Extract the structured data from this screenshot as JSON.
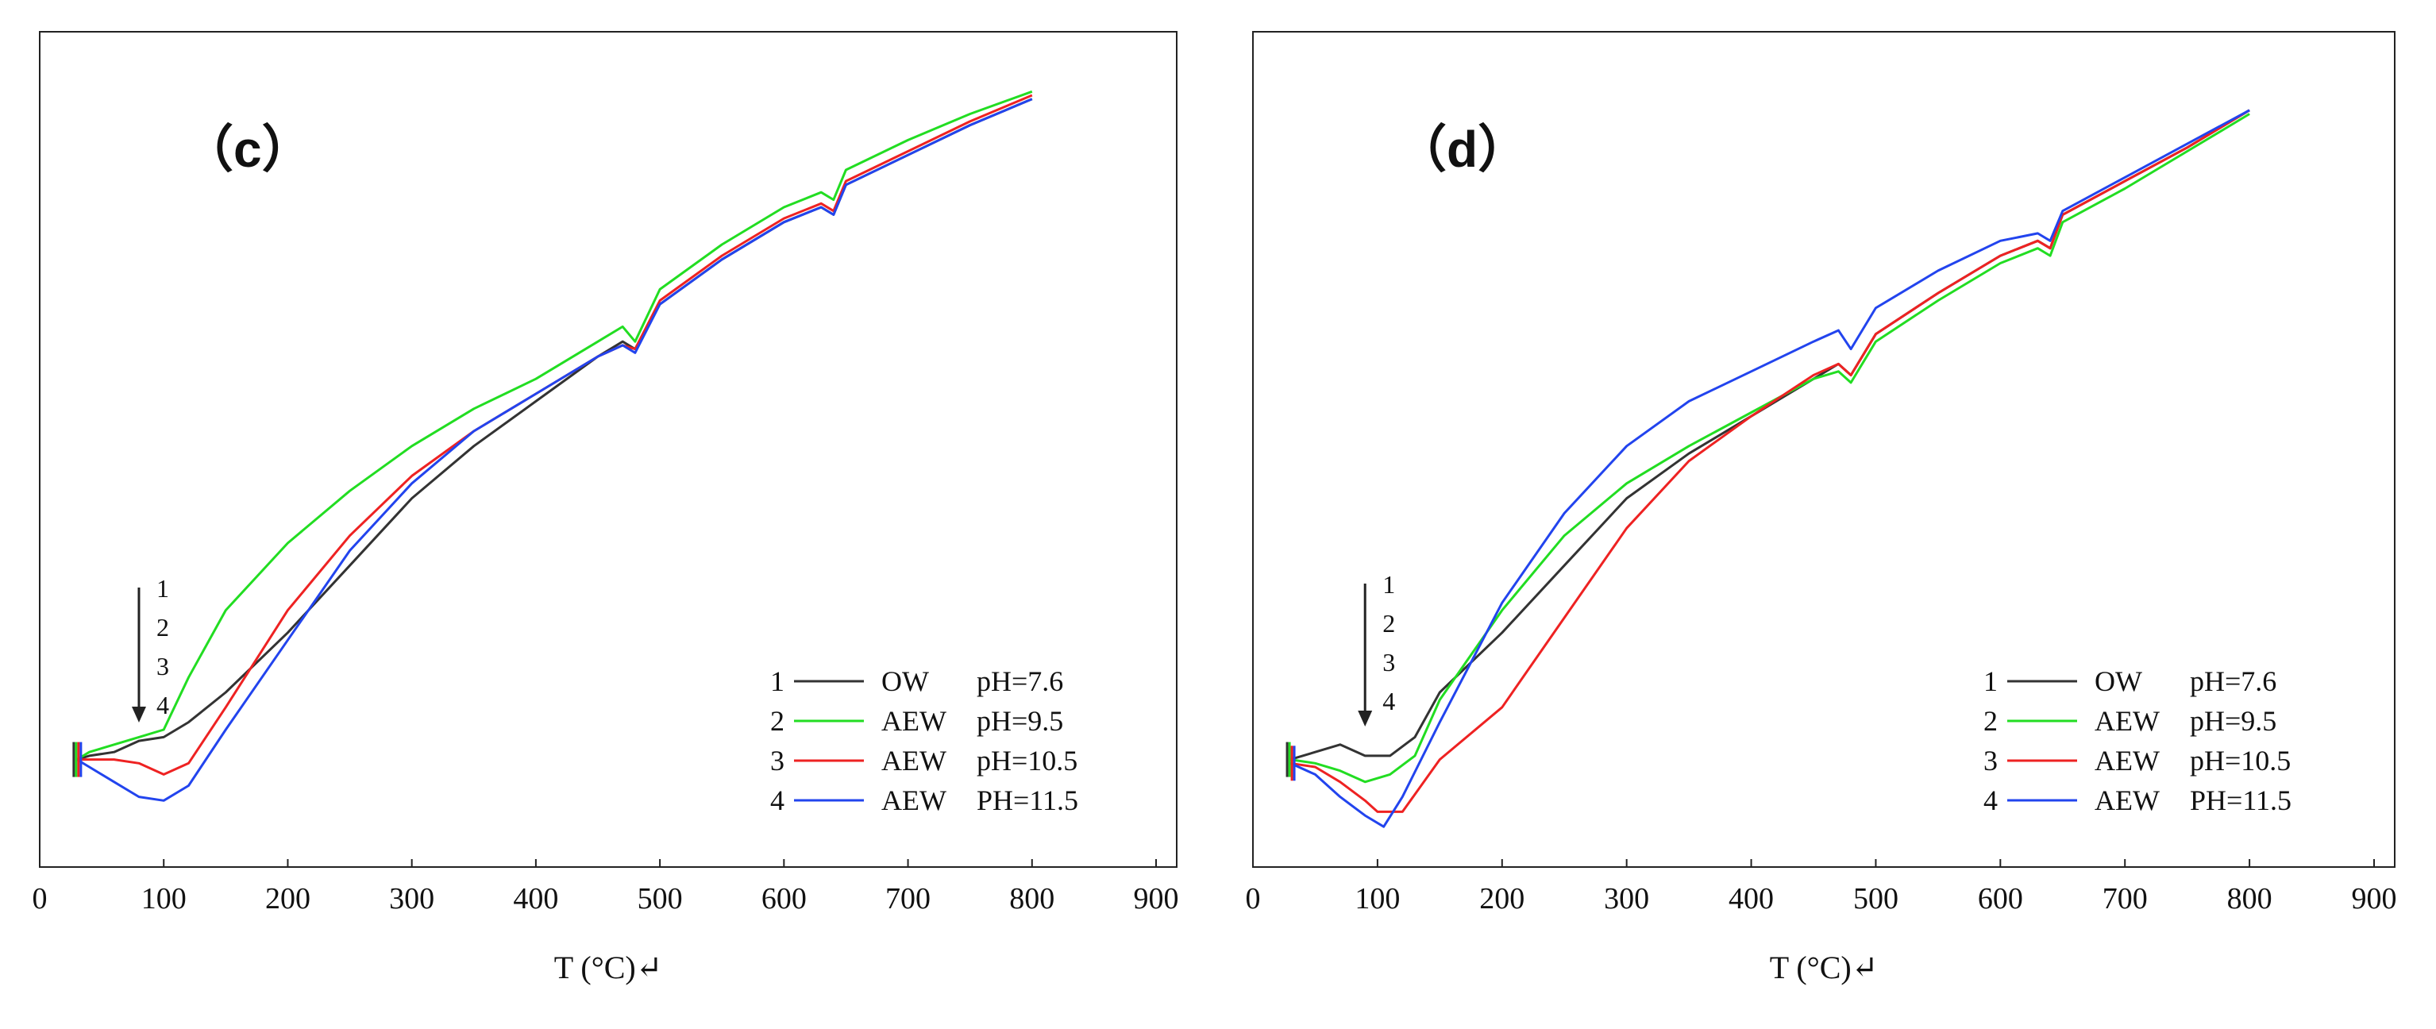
{
  "chart_data": [
    {
      "type": "line",
      "panel_label": "（c）",
      "xlabel": "T (°C)↵",
      "ylabel": "",
      "xlim": [
        0,
        900
      ],
      "ylim": [
        0,
        100
      ],
      "x_ticks": [
        "0",
        "100",
        "200",
        "300",
        "400",
        "500",
        "600",
        "700",
        "800",
        "900"
      ],
      "arrow_labels": [
        "1",
        "2",
        "3",
        "4"
      ],
      "legend": [
        {
          "num": "1",
          "name": "OW",
          "ph": "pH=7.6",
          "color": "#333333"
        },
        {
          "num": "2",
          "name": "AEW",
          "ph": "pH=9.5",
          "color": "#22dd22"
        },
        {
          "num": "3",
          "name": "AEW",
          "ph": "pH=10.5",
          "color": "#ee2222"
        },
        {
          "num": "4",
          "name": "AEW",
          "ph": "PH=11.5",
          "color": "#2244ee"
        }
      ],
      "series": [
        {
          "name": "OW pH=7.6",
          "color": "#333333",
          "points": [
            [
              30,
              11
            ],
            [
              40,
              11.5
            ],
            [
              60,
              12
            ],
            [
              80,
              13.5
            ],
            [
              100,
              14
            ],
            [
              120,
              16
            ],
            [
              150,
              20
            ],
            [
              200,
              28
            ],
            [
              250,
              37
            ],
            [
              300,
              46
            ],
            [
              350,
              53
            ],
            [
              400,
              59
            ],
            [
              450,
              65
            ],
            [
              470,
              67
            ],
            [
              480,
              66
            ],
            [
              500,
              72
            ],
            [
              550,
              78
            ],
            [
              600,
              83
            ],
            [
              630,
              85
            ],
            [
              640,
              84
            ],
            [
              650,
              88
            ],
            [
              700,
              92
            ],
            [
              750,
              96
            ],
            [
              800,
              99.5
            ]
          ]
        },
        {
          "name": "AEW pH=9.5",
          "color": "#22dd22",
          "points": [
            [
              30,
              11
            ],
            [
              40,
              12
            ],
            [
              60,
              13
            ],
            [
              80,
              14
            ],
            [
              100,
              15
            ],
            [
              120,
              22
            ],
            [
              150,
              31
            ],
            [
              200,
              40
            ],
            [
              250,
              47
            ],
            [
              300,
              53
            ],
            [
              350,
              58
            ],
            [
              400,
              62
            ],
            [
              450,
              67
            ],
            [
              470,
              69
            ],
            [
              480,
              67
            ],
            [
              500,
              74
            ],
            [
              550,
              80
            ],
            [
              600,
              85
            ],
            [
              630,
              87
            ],
            [
              640,
              86
            ],
            [
              650,
              90
            ],
            [
              700,
              94
            ],
            [
              750,
              97.5
            ],
            [
              800,
              100.5
            ]
          ]
        },
        {
          "name": "AEW pH=10.5",
          "color": "#ee2222",
          "points": [
            [
              30,
              11
            ],
            [
              40,
              11
            ],
            [
              60,
              11
            ],
            [
              80,
              10.5
            ],
            [
              100,
              9
            ],
            [
              120,
              10.5
            ],
            [
              150,
              18
            ],
            [
              200,
              31
            ],
            [
              250,
              41
            ],
            [
              300,
              49
            ],
            [
              350,
              55
            ],
            [
              400,
              60
            ],
            [
              450,
              65
            ],
            [
              470,
              66.5
            ],
            [
              480,
              66
            ],
            [
              500,
              72.5
            ],
            [
              550,
              78.5
            ],
            [
              600,
              83.5
            ],
            [
              630,
              85.5
            ],
            [
              640,
              84.5
            ],
            [
              650,
              88.5
            ],
            [
              700,
              92.5
            ],
            [
              750,
              96.5
            ],
            [
              800,
              100
            ]
          ]
        },
        {
          "name": "AEW PH=11.5",
          "color": "#2244ee",
          "points": [
            [
              30,
              11
            ],
            [
              40,
              10
            ],
            [
              60,
              8
            ],
            [
              80,
              6
            ],
            [
              100,
              5.5
            ],
            [
              120,
              7.5
            ],
            [
              150,
              15
            ],
            [
              200,
              27
            ],
            [
              250,
              39
            ],
            [
              300,
              48
            ],
            [
              350,
              55
            ],
            [
              400,
              60
            ],
            [
              450,
              65
            ],
            [
              470,
              66.5
            ],
            [
              480,
              65.5
            ],
            [
              500,
              72
            ],
            [
              550,
              78
            ],
            [
              600,
              83
            ],
            [
              630,
              85
            ],
            [
              640,
              84
            ],
            [
              650,
              88
            ],
            [
              700,
              92
            ],
            [
              750,
              96
            ],
            [
              800,
              99.5
            ]
          ]
        }
      ]
    },
    {
      "type": "line",
      "panel_label": "（d）",
      "xlabel": "T (°C)↵",
      "ylabel": "",
      "xlim": [
        0,
        900
      ],
      "ylim": [
        0,
        100
      ],
      "x_ticks": [
        "0",
        "100",
        "200",
        "300",
        "400",
        "500",
        "600",
        "700",
        "800",
        "900"
      ],
      "arrow_labels": [
        "1",
        "2",
        "3",
        "4"
      ],
      "legend": [
        {
          "num": "1",
          "name": "OW",
          "ph": "pH=7.6",
          "color": "#333333"
        },
        {
          "num": "2",
          "name": "AEW",
          "ph": "pH=9.5",
          "color": "#22dd22"
        },
        {
          "num": "3",
          "name": "AEW",
          "ph": "pH=10.5",
          "color": "#ee2222"
        },
        {
          "num": "4",
          "name": "AEW",
          "ph": "PH=11.5",
          "color": "#2244ee"
        }
      ],
      "series": [
        {
          "name": "OW pH=7.6",
          "color": "#333333",
          "points": [
            [
              30,
              11
            ],
            [
              50,
              12
            ],
            [
              70,
              13
            ],
            [
              90,
              11.5
            ],
            [
              110,
              11.5
            ],
            [
              130,
              14
            ],
            [
              150,
              20
            ],
            [
              200,
              28
            ],
            [
              250,
              37
            ],
            [
              300,
              46
            ],
            [
              350,
              52
            ],
            [
              400,
              57
            ],
            [
              450,
              62
            ],
            [
              470,
              64
            ],
            [
              480,
              62.5
            ],
            [
              500,
              68
            ],
            [
              550,
              73.5
            ],
            [
              600,
              78.5
            ],
            [
              630,
              80.5
            ],
            [
              640,
              79.5
            ],
            [
              650,
              84
            ],
            [
              700,
              88.5
            ],
            [
              750,
              93
            ],
            [
              800,
              98
            ]
          ]
        },
        {
          "name": "AEW pH=9.5",
          "color": "#22dd22",
          "points": [
            [
              30,
              11
            ],
            [
              50,
              10.5
            ],
            [
              70,
              9.5
            ],
            [
              90,
              8
            ],
            [
              110,
              9
            ],
            [
              130,
              11.5
            ],
            [
              150,
              19
            ],
            [
              200,
              31
            ],
            [
              250,
              41
            ],
            [
              300,
              48
            ],
            [
              350,
              53
            ],
            [
              400,
              57.5
            ],
            [
              450,
              62
            ],
            [
              470,
              63
            ],
            [
              480,
              61.5
            ],
            [
              500,
              67
            ],
            [
              550,
              72.5
            ],
            [
              600,
              77.5
            ],
            [
              630,
              79.5
            ],
            [
              640,
              78.5
            ],
            [
              650,
              83
            ],
            [
              700,
              87.5
            ],
            [
              750,
              92.5
            ],
            [
              800,
              97.5
            ]
          ]
        },
        {
          "name": "AEW pH=10.5",
          "color": "#ee2222",
          "points": [
            [
              30,
              10.5
            ],
            [
              50,
              10
            ],
            [
              70,
              8
            ],
            [
              90,
              5.5
            ],
            [
              100,
              4
            ],
            [
              120,
              4
            ],
            [
              150,
              11
            ],
            [
              200,
              18
            ],
            [
              250,
              30
            ],
            [
              300,
              42
            ],
            [
              350,
              51
            ],
            [
              400,
              57
            ],
            [
              450,
              62.5
            ],
            [
              470,
              64
            ],
            [
              480,
              62.5
            ],
            [
              500,
              68
            ],
            [
              550,
              73.5
            ],
            [
              600,
              78.5
            ],
            [
              630,
              80.5
            ],
            [
              640,
              79.5
            ],
            [
              650,
              84
            ],
            [
              700,
              88.5
            ],
            [
              750,
              93
            ],
            [
              800,
              98
            ]
          ]
        },
        {
          "name": "AEW PH=11.5",
          "color": "#2244ee",
          "points": [
            [
              30,
              10.5
            ],
            [
              50,
              9
            ],
            [
              70,
              6
            ],
            [
              90,
              3.5
            ],
            [
              105,
              2
            ],
            [
              120,
              6
            ],
            [
              150,
              16
            ],
            [
              200,
              32
            ],
            [
              250,
              44
            ],
            [
              300,
              53
            ],
            [
              350,
              59
            ],
            [
              400,
              63
            ],
            [
              450,
              67
            ],
            [
              470,
              68.5
            ],
            [
              480,
              66
            ],
            [
              500,
              71.5
            ],
            [
              550,
              76.5
            ],
            [
              600,
              80.5
            ],
            [
              630,
              81.5
            ],
            [
              640,
              80.5
            ],
            [
              650,
              84.5
            ],
            [
              700,
              89
            ],
            [
              750,
              93.5
            ],
            [
              800,
              98
            ]
          ]
        }
      ]
    }
  ]
}
